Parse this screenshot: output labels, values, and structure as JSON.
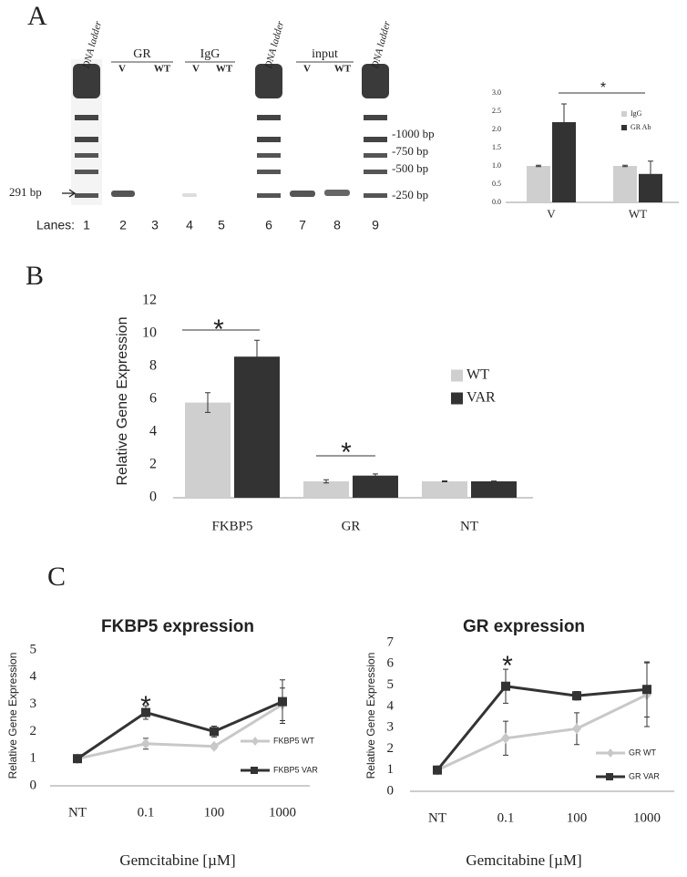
{
  "panel_labels": [
    "A",
    "B",
    "C"
  ],
  "gel": {
    "lane_titles": [
      "DNA ladder",
      "DNA ladder",
      "DNA ladder"
    ],
    "groups": [
      {
        "name": "GR",
        "sub": [
          "V",
          "WT"
        ]
      },
      {
        "name": "IgG",
        "sub": [
          "V",
          "WT"
        ]
      },
      {
        "name": "input",
        "sub": [
          "V",
          "WT"
        ]
      }
    ],
    "sizes": [
      "-1000 bp",
      "-750 bp",
      "-500 bp",
      "-250 bp"
    ],
    "marker": "291 bp",
    "lanes_label": "Lanes:",
    "lanes": [
      "1",
      "2",
      "3",
      "4",
      "5",
      "6",
      "7",
      "8",
      "9"
    ]
  },
  "chart_data": [
    {
      "type": "bar",
      "categories": [
        "V",
        "WT"
      ],
      "series": [
        {
          "name": "IgG",
          "color": "#cfcfcf",
          "values": [
            1.0,
            1.0
          ],
          "errors": [
            0.02,
            0.02
          ]
        },
        {
          "name": "GR Ab",
          "color": "#333333",
          "values": [
            2.2,
            0.78
          ],
          "errors": [
            0.5,
            0.35
          ]
        }
      ],
      "ylim": [
        0,
        3
      ],
      "yticks": [
        {
          "value": 0,
          "label": "0.0"
        },
        {
          "value": 0.5,
          "label": "0.5"
        },
        {
          "value": 1,
          "label": "1.0"
        },
        {
          "value": 1.5,
          "label": "1.5"
        },
        {
          "value": 2,
          "label": "2.0"
        },
        {
          "value": 2.5,
          "label": "2.5"
        },
        {
          "value": 3,
          "label": "3.0"
        }
      ],
      "annotations": [
        "*"
      ]
    },
    {
      "type": "bar",
      "ylabel": "Relative Gene Expression",
      "categories": [
        "FKBP5",
        "GR",
        "NT"
      ],
      "series": [
        {
          "name": "WT",
          "color": "#cfcfcf",
          "values": [
            5.8,
            1.0,
            1.0
          ],
          "errors": [
            0.6,
            0.1,
            0.03
          ]
        },
        {
          "name": "VAR",
          "color": "#333333",
          "values": [
            8.6,
            1.35,
            1.0
          ],
          "errors": [
            1.0,
            0.1,
            0.02
          ]
        }
      ],
      "ylim": [
        0,
        12
      ],
      "yticks": [
        0,
        2,
        4,
        6,
        8,
        10,
        12
      ],
      "annotations": [
        "*",
        "*"
      ]
    },
    {
      "type": "line",
      "title": "FKBP5 expression",
      "xlabel": "Gemcitabine [µM]",
      "ylabel": "Relative Gene Expression",
      "categories": [
        "NT",
        "0.1",
        "100",
        "1000"
      ],
      "series": [
        {
          "name": "FKBP5 WT",
          "color": "#c8c8c8",
          "marker": "diamond",
          "values": [
            1,
            1.55,
            1.45,
            3.0
          ],
          "errors": [
            0,
            0.2,
            0.08,
            0.6
          ]
        },
        {
          "name": "FKBP5 VAR",
          "color": "#333333",
          "marker": "square",
          "values": [
            1,
            2.7,
            2.0,
            3.1
          ],
          "errors": [
            0,
            0.25,
            0.2,
            0.8
          ]
        }
      ],
      "ylim": [
        0,
        5
      ],
      "yticks": [
        0,
        1,
        2,
        3,
        4,
        5
      ],
      "annotations": [
        "*"
      ]
    },
    {
      "type": "line",
      "title": "GR expression",
      "xlabel": "Gemcitabine [µM]",
      "ylabel": "Relative Gene Expression",
      "categories": [
        "NT",
        "0.1",
        "100",
        "1000"
      ],
      "series": [
        {
          "name": "GR WT",
          "color": "#c8c8c8",
          "marker": "diamond",
          "values": [
            1,
            2.5,
            2.95,
            4.55
          ],
          "errors": [
            0,
            0.8,
            0.75,
            1.5
          ]
        },
        {
          "name": "GR VAR",
          "color": "#333333",
          "marker": "square",
          "values": [
            1,
            4.95,
            4.5,
            4.8
          ],
          "errors": [
            0,
            0.8,
            0.2,
            1.3
          ]
        }
      ],
      "ylim": [
        0,
        7
      ],
      "yticks": [
        0,
        1,
        2,
        3,
        4,
        5,
        6,
        7
      ],
      "annotations": [
        "*"
      ]
    }
  ]
}
